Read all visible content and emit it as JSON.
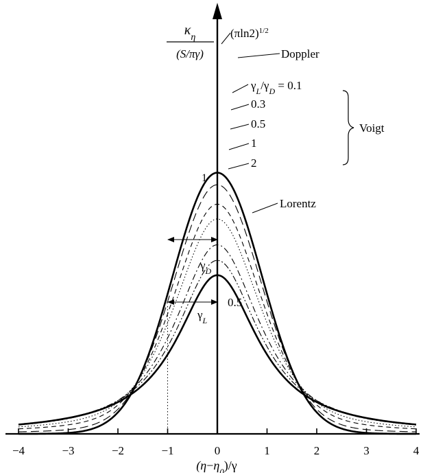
{
  "chart_data": {
    "type": "line",
    "title": "",
    "xlabel_parts": [
      "(η",
      "−",
      "η",
      "0",
      ")/γ"
    ],
    "ylabel_numerator": [
      "κ",
      "η"
    ],
    "ylabel_denominator": "(S/πγ)",
    "xlim": [
      -4,
      4
    ],
    "ylim": [
      0,
      1.0
    ],
    "x_ticks": [
      -4,
      -3,
      -2,
      -1,
      0,
      1,
      2,
      3,
      4
    ],
    "x_tick_labels": [
      "−4",
      "−3",
      "−2",
      "−1",
      "0",
      "1",
      "2",
      "3",
      "4"
    ],
    "grid": false,
    "series": [
      {
        "name": "Doppler",
        "style": "solid-bold",
        "kind": "gaussian",
        "peak": 0.9394,
        "width_param": 1.2011
      },
      {
        "name": "0.1",
        "style": "long-dash",
        "kind": "voigt",
        "peak": 0.896,
        "pseudo_voigt_eta": 0.14
      },
      {
        "name": "0.3",
        "style": "dash",
        "kind": "voigt",
        "peak": 0.826,
        "pseudo_voigt_eta": 0.37
      },
      {
        "name": "0.5",
        "style": "dotted",
        "kind": "voigt",
        "peak": 0.773,
        "pseudo_voigt_eta": 0.55
      },
      {
        "name": "1",
        "style": "dash-dot",
        "kind": "voigt",
        "peak": 0.68,
        "pseudo_voigt_eta": 0.8
      },
      {
        "name": "2",
        "style": "dash-dot-dot",
        "kind": "voigt",
        "peak": 0.624,
        "pseudo_voigt_eta": 0.93
      },
      {
        "name": "Lorentz",
        "style": "solid-bold",
        "kind": "lorentz",
        "peak": 0.5708,
        "width_param": 1.0
      }
    ],
    "annotations": {
      "doppler_peak_label": [
        "(π",
        "ln2)",
        "1/2"
      ],
      "doppler_label": "Doppler",
      "ratio_label": [
        "γ",
        "L",
        "/γ",
        "D",
        " = 0.1"
      ],
      "ratio_values": [
        "0.3",
        "0.5",
        "1",
        "2"
      ],
      "voigt_label": "Voigt",
      "lorentz_peak_label": "1",
      "lorentz_label": "Lorentz",
      "gamma_d_label": [
        "γ",
        "D"
      ],
      "gamma_l_label": [
        "γ",
        "L"
      ],
      "half_value_label": "0.5"
    },
    "colors": {
      "line": "#000000",
      "background": "#ffffff"
    }
  }
}
